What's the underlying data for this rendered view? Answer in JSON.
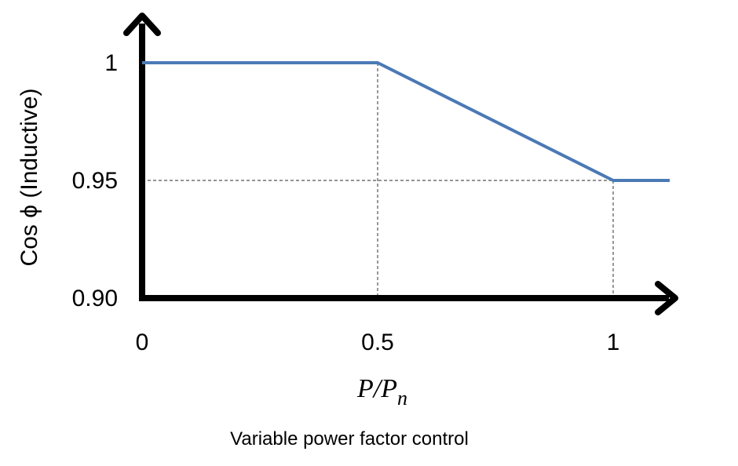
{
  "chart_data": {
    "type": "line",
    "title": "",
    "xlabel": "P/P_n",
    "ylabel": "Cos ϕ (Inductive)",
    "caption": "Variable power factor control",
    "x_ticks": [
      "0",
      "0.5",
      "1"
    ],
    "y_ticks": [
      "1",
      "0.95",
      "0.90"
    ],
    "xlim": [
      0,
      1.12
    ],
    "ylim": [
      0.9,
      1.0
    ],
    "grid": false,
    "reference_lines": [
      {
        "x": 0.5,
        "y": 1.0
      },
      {
        "x": 1.0,
        "y": 0.95
      }
    ],
    "series": [
      {
        "x": [
          0,
          0.5,
          1.0,
          1.12
        ],
        "y": [
          1.0,
          1.0,
          0.95,
          0.95
        ]
      }
    ],
    "colors": {
      "line": "#4a7ab5",
      "axis": "#000000",
      "guide": "#555555"
    }
  }
}
